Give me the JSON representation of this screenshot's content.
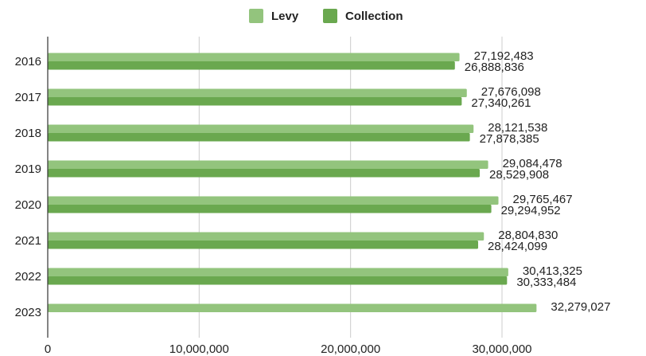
{
  "chart_data": {
    "type": "bar",
    "orientation": "horizontal",
    "categories": [
      "2016",
      "2017",
      "2018",
      "2019",
      "2020",
      "2021",
      "2022",
      "2023"
    ],
    "series": [
      {
        "name": "Levy",
        "color": "#93c47d",
        "values": [
          27192483,
          27676098,
          28121538,
          29084478,
          29765467,
          28804830,
          30413325,
          32279027
        ],
        "labels": [
          "27,192,483",
          "27,676,098",
          "28,121,538",
          "29,084,478",
          "29,765,467",
          "28,804,830",
          "30,413,325",
          "32,279,027"
        ]
      },
      {
        "name": "Collection",
        "color": "#6aa84f",
        "values": [
          26888836,
          27340261,
          27878385,
          28529908,
          29294952,
          28424099,
          30333484,
          null
        ],
        "labels": [
          "26,888,836",
          "27,340,261",
          "27,878,385",
          "28,529,908",
          "29,294,952",
          "28,424,099",
          "30,333,484",
          ""
        ]
      }
    ],
    "xlim": [
      0,
      30000000
    ],
    "x_ticks": [
      0,
      10000000,
      20000000,
      30000000
    ],
    "x_tick_labels": [
      "0",
      "10,000,000",
      "20,000,000",
      "30,000,000"
    ],
    "grid": true,
    "legend_position": "top-center",
    "title": "",
    "xlabel": "",
    "ylabel": ""
  }
}
